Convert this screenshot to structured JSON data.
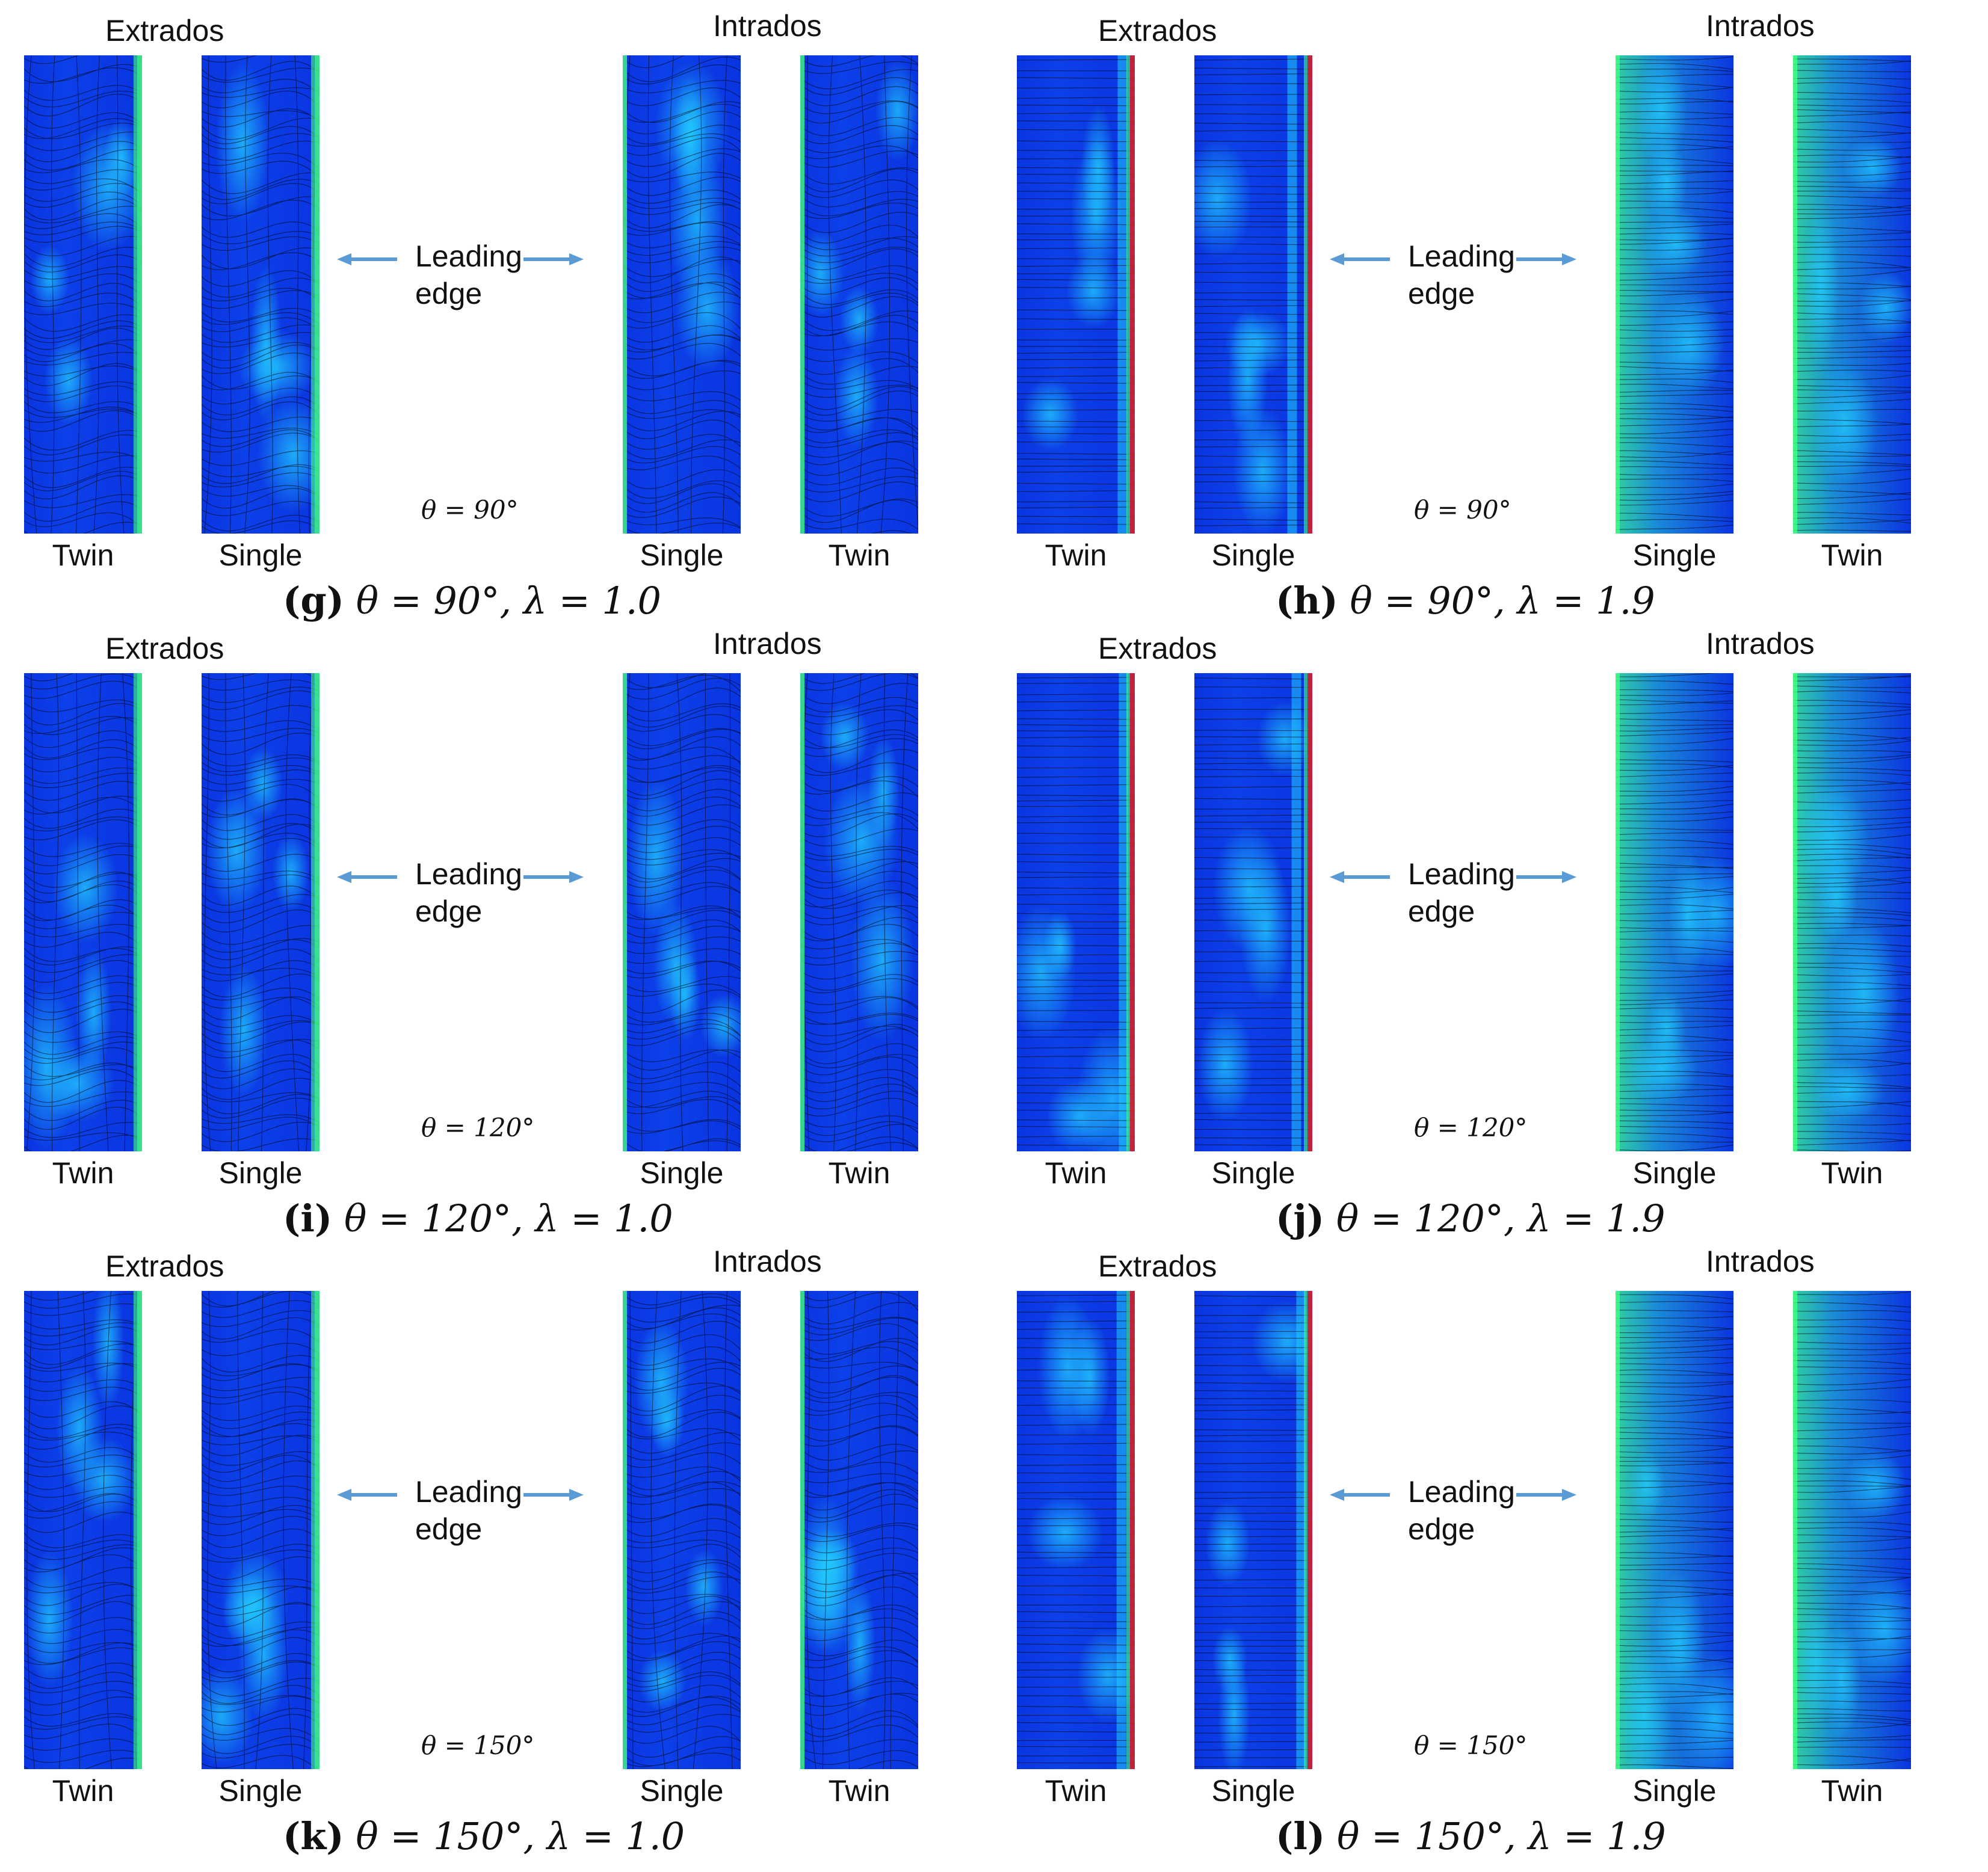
{
  "panels": [
    {
      "tag": "g",
      "theta_label": "θ = 90°",
      "caption_tag": "(g)",
      "caption_math": "θ = 90°, λ = 1.0",
      "style": "a"
    },
    {
      "tag": "h",
      "theta_label": "θ = 90°",
      "caption_tag": "(h)",
      "caption_math": "θ = 90°, λ = 1.9",
      "style": "b"
    },
    {
      "tag": "i",
      "theta_label": "θ = 120°",
      "caption_tag": "(i)",
      "caption_math": "θ = 120°, λ = 1.0",
      "style": "a"
    },
    {
      "tag": "j",
      "theta_label": "θ = 120°",
      "caption_tag": "(j)",
      "caption_math": "θ = 120°, λ = 1.9",
      "style": "b"
    },
    {
      "tag": "k",
      "theta_label": "θ = 150°",
      "caption_tag": "(k)",
      "caption_math": "θ = 150°, λ = 1.0",
      "style": "a"
    },
    {
      "tag": "l",
      "theta_label": "θ = 150°",
      "caption_tag": "(l)",
      "caption_math": "θ = 150°, λ = 1.9",
      "style": "b"
    }
  ],
  "labels": {
    "extrados": "Extrados",
    "intrados": "Intrados",
    "twin": "Twin",
    "single": "Single",
    "leading_edge": "Leading\nedge"
  },
  "colors": {
    "blade_base": "#0a35e0",
    "highlight": "#22d0ff",
    "edge": "#40ff80",
    "edge_red": "#e02020",
    "streamline": "#000000",
    "arrow": "#5b9bd5"
  }
}
